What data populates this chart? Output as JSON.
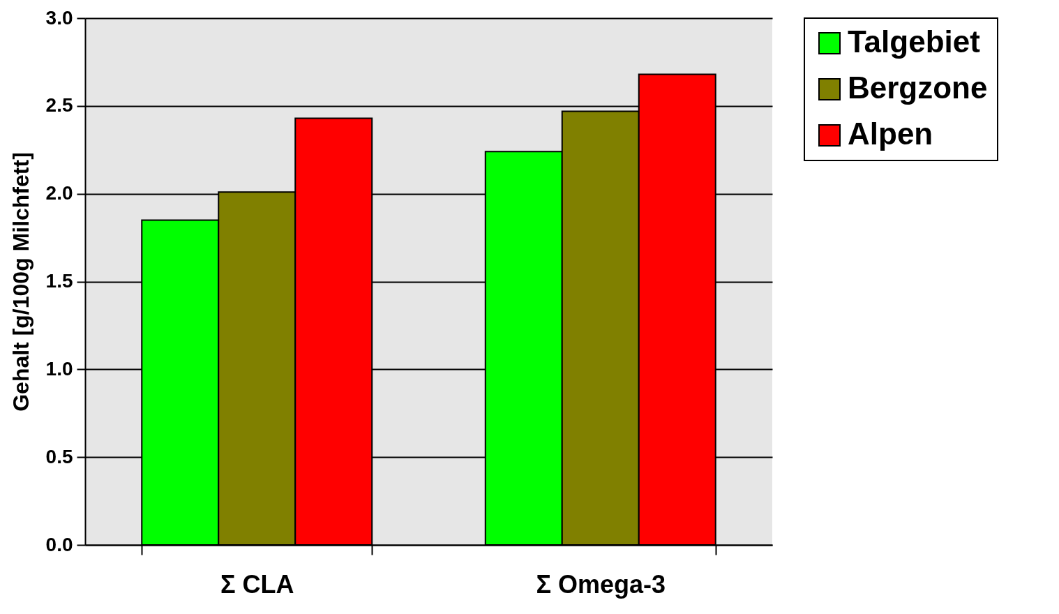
{
  "chart_data": {
    "type": "bar",
    "ylabel": "Gehalt [g/100g Milchfett]",
    "categories": [
      "Σ CLA",
      "Σ Omega-3"
    ],
    "series": [
      {
        "name": "Talgebiet",
        "color": "#00ff00",
        "values": [
          1.85,
          2.24
        ]
      },
      {
        "name": "Bergzone",
        "color": "#808000",
        "values": [
          2.01,
          2.47
        ]
      },
      {
        "name": "Alpen",
        "color": "#ff0000",
        "values": [
          2.43,
          2.68
        ]
      }
    ],
    "ylim": [
      0,
      3
    ],
    "yticks": [
      {
        "value": 0,
        "label": "0.0"
      },
      {
        "value": 0.5,
        "label": "0.5"
      },
      {
        "value": 1,
        "label": "1.0"
      },
      {
        "value": 1.5,
        "label": "1.5"
      },
      {
        "value": 2,
        "label": "2.0"
      },
      {
        "value": 2.5,
        "label": "2.5"
      },
      {
        "value": 3,
        "label": "3.0"
      }
    ],
    "grid": "y",
    "legend": "top right"
  }
}
